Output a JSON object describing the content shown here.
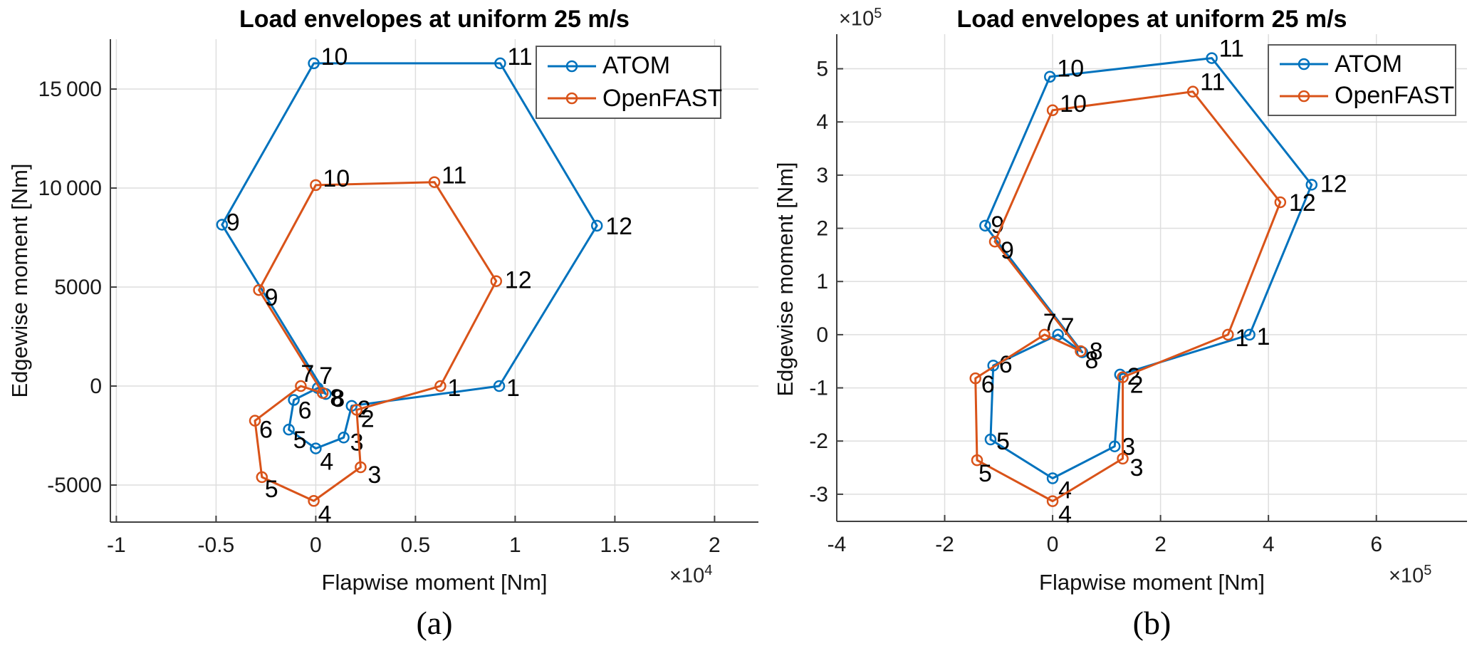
{
  "colors": {
    "atom": "#0072BD",
    "openfast": "#D95319",
    "grid": "#DEDEDE",
    "axis": "#404040",
    "text": "#000000"
  },
  "legend": {
    "atom": "ATOM",
    "openfast": "OpenFAST"
  },
  "captions": {
    "a": "(a)",
    "b": "(b)"
  },
  "chart_data": [
    {
      "id": "a",
      "type": "line",
      "title": "Load envelopes at uniform 25 m/s",
      "xlabel": "Flapwise moment [Nm]",
      "ylabel": "Edgewise moment [Nm]",
      "x_multiplier": {
        "base": "×10",
        "exp": "4"
      },
      "xlim": [
        -10300,
        22200
      ],
      "ylim": [
        -6870,
        17520
      ],
      "grid": true,
      "legend_position": "top-right-inside",
      "xticks": [
        {
          "v": -10000,
          "label": "-1"
        },
        {
          "v": -5000,
          "label": "-0.5"
        },
        {
          "v": 0,
          "label": "0"
        },
        {
          "v": 5000,
          "label": "0.5"
        },
        {
          "v": 10000,
          "label": "1"
        },
        {
          "v": 15000,
          "label": "1.5"
        },
        {
          "v": 20000,
          "label": "2"
        }
      ],
      "yticks": [
        {
          "v": -5000,
          "label": "-5000"
        },
        {
          "v": 0,
          "label": "0"
        },
        {
          "v": 5000,
          "label": "5000"
        },
        {
          "v": 10000,
          "label": "10 000"
        },
        {
          "v": 15000,
          "label": "15 000"
        }
      ],
      "series": [
        {
          "name": "ATOM",
          "color_key": "atom",
          "closed": true,
          "points": [
            {
              "n": "1",
              "x": 9200,
              "y": 0,
              "dx": 10,
              "dy": 14
            },
            {
              "n": "2",
              "x": 1800,
              "y": -1000,
              "dx": 8,
              "dy": 16
            },
            {
              "n": "3",
              "x": 1400,
              "y": -2600,
              "dx": 9,
              "dy": 18
            },
            {
              "n": "4",
              "x": 0,
              "y": -3150,
              "dx": 6,
              "dy": 30
            },
            {
              "n": "5",
              "x": -1350,
              "y": -2200,
              "dx": 6,
              "dy": 26
            },
            {
              "n": "6",
              "x": -1100,
              "y": -700,
              "dx": 6,
              "dy": 26
            },
            {
              "n": "7",
              "x": 100,
              "y": -100,
              "dx": 2,
              "dy": -6
            },
            {
              "n": "8",
              "x": 500,
              "y": -400,
              "dx": 8,
              "dy": 18
            },
            {
              "n": "9",
              "x": -4700,
              "y": 8150,
              "dx": 6,
              "dy": 8
            },
            {
              "n": "10",
              "x": -100,
              "y": 16300,
              "dx": 10,
              "dy": 2
            },
            {
              "n": "11",
              "x": 9250,
              "y": 16300,
              "dx": 10,
              "dy": 2
            },
            {
              "n": "12",
              "x": 14100,
              "y": 8100,
              "dx": 12,
              "dy": 12
            }
          ]
        },
        {
          "name": "OpenFAST",
          "color_key": "openfast",
          "closed": true,
          "points": [
            {
              "n": "1",
              "x": 6250,
              "y": 0,
              "dx": 10,
              "dy": 14
            },
            {
              "n": "2",
              "x": 2050,
              "y": -1200,
              "dx": 6,
              "dy": 24
            },
            {
              "n": "3",
              "x": 2250,
              "y": -4100,
              "dx": 10,
              "dy": 22
            },
            {
              "n": "4",
              "x": -100,
              "y": -5800,
              "dx": 6,
              "dy": 30
            },
            {
              "n": "5",
              "x": -2700,
              "y": -4600,
              "dx": 4,
              "dy": 28
            },
            {
              "n": "6",
              "x": -3050,
              "y": -1750,
              "dx": 6,
              "dy": 24
            },
            {
              "n": "7",
              "x": -750,
              "y": 0,
              "dx": 0,
              "dy": -6
            },
            {
              "n": "8",
              "x": 350,
              "y": -350,
              "dx": 10,
              "dy": 18
            },
            {
              "n": "9",
              "x": -2850,
              "y": 4850,
              "dx": 8,
              "dy": 22
            },
            {
              "n": "10",
              "x": 0,
              "y": 10150,
              "dx": 10,
              "dy": 2
            },
            {
              "n": "11",
              "x": 5950,
              "y": 10300,
              "dx": 10,
              "dy": 2
            },
            {
              "n": "12",
              "x": 9050,
              "y": 5300,
              "dx": 12,
              "dy": 10
            }
          ]
        }
      ]
    },
    {
      "id": "b",
      "type": "line",
      "title": "Load envelopes at uniform 25 m/s",
      "xlabel": "Flapwise moment [Nm]",
      "ylabel": "Edgewise moment [Nm]",
      "x_multiplier": {
        "base": "×10",
        "exp": "5"
      },
      "y_multiplier": {
        "base": "×10",
        "exp": "5"
      },
      "xlim": [
        -400000,
        768000
      ],
      "ylim": [
        -351000,
        565000
      ],
      "grid": true,
      "legend_position": "top-right-inside",
      "xticks": [
        {
          "v": -400000,
          "label": "-4"
        },
        {
          "v": -200000,
          "label": "-2"
        },
        {
          "v": 0,
          "label": "0"
        },
        {
          "v": 200000,
          "label": "2"
        },
        {
          "v": 400000,
          "label": "4"
        },
        {
          "v": 600000,
          "label": "6"
        }
      ],
      "yticks": [
        {
          "v": -300000,
          "label": "-3"
        },
        {
          "v": -200000,
          "label": "-2"
        },
        {
          "v": -100000,
          "label": "-1"
        },
        {
          "v": 0,
          "label": "0"
        },
        {
          "v": 100000,
          "label": "1"
        },
        {
          "v": 200000,
          "label": "2"
        },
        {
          "v": 300000,
          "label": "3"
        },
        {
          "v": 400000,
          "label": "4"
        },
        {
          "v": 500000,
          "label": "5"
        }
      ],
      "series": [
        {
          "name": "ATOM",
          "color_key": "atom",
          "closed": true,
          "points": [
            {
              "n": "1",
              "x": 365000,
              "y": 0,
              "dx": 10,
              "dy": 14
            },
            {
              "n": "2",
              "x": 125000,
              "y": -75000,
              "dx": 10,
              "dy": 14
            },
            {
              "n": "3",
              "x": 115000,
              "y": -210000,
              "dx": 10,
              "dy": 12
            },
            {
              "n": "4",
              "x": 0,
              "y": -270000,
              "dx": 8,
              "dy": 28
            },
            {
              "n": "5",
              "x": -115000,
              "y": -197000,
              "dx": 8,
              "dy": 14
            },
            {
              "n": "6",
              "x": -110000,
              "y": -58000,
              "dx": 8,
              "dy": 10
            },
            {
              "n": "7",
              "x": 10000,
              "y": 0,
              "dx": 4,
              "dy": 0
            },
            {
              "n": "8",
              "x": 55000,
              "y": -33000,
              "dx": 10,
              "dy": 10
            },
            {
              "n": "9",
              "x": -125000,
              "y": 205000,
              "dx": 8,
              "dy": 10
            },
            {
              "n": "10",
              "x": -5000,
              "y": 485000,
              "dx": 10,
              "dy": 0
            },
            {
              "n": "11",
              "x": 295000,
              "y": 520000,
              "dx": 10,
              "dy": -2
            },
            {
              "n": "12",
              "x": 480000,
              "y": 282000,
              "dx": 12,
              "dy": 10
            }
          ]
        },
        {
          "name": "OpenFAST",
          "color_key": "openfast",
          "closed": true,
          "points": [
            {
              "n": "1",
              "x": 325000,
              "y": 0,
              "dx": 10,
              "dy": 16
            },
            {
              "n": "2",
              "x": 130000,
              "y": -80000,
              "dx": 10,
              "dy": 22
            },
            {
              "n": "3",
              "x": 130000,
              "y": -233000,
              "dx": 10,
              "dy": 24
            },
            {
              "n": "4",
              "x": 0,
              "y": -313000,
              "dx": 8,
              "dy": 30
            },
            {
              "n": "5",
              "x": -140000,
              "y": -236000,
              "dx": 2,
              "dy": 30
            },
            {
              "n": "6",
              "x": -143000,
              "y": -82000,
              "dx": 8,
              "dy": 20
            },
            {
              "n": "7",
              "x": -15000,
              "y": 0,
              "dx": -2,
              "dy": -6
            },
            {
              "n": "8",
              "x": 52000,
              "y": -31000,
              "dx": 6,
              "dy": 24
            },
            {
              "n": "9",
              "x": -107000,
              "y": 175000,
              "dx": 8,
              "dy": 24
            },
            {
              "n": "10",
              "x": 0,
              "y": 422000,
              "dx": 10,
              "dy": 2
            },
            {
              "n": "11",
              "x": 260000,
              "y": 457000,
              "dx": 10,
              "dy": -2
            },
            {
              "n": "12",
              "x": 422000,
              "y": 249000,
              "dx": 12,
              "dy": 12
            }
          ]
        }
      ]
    }
  ]
}
